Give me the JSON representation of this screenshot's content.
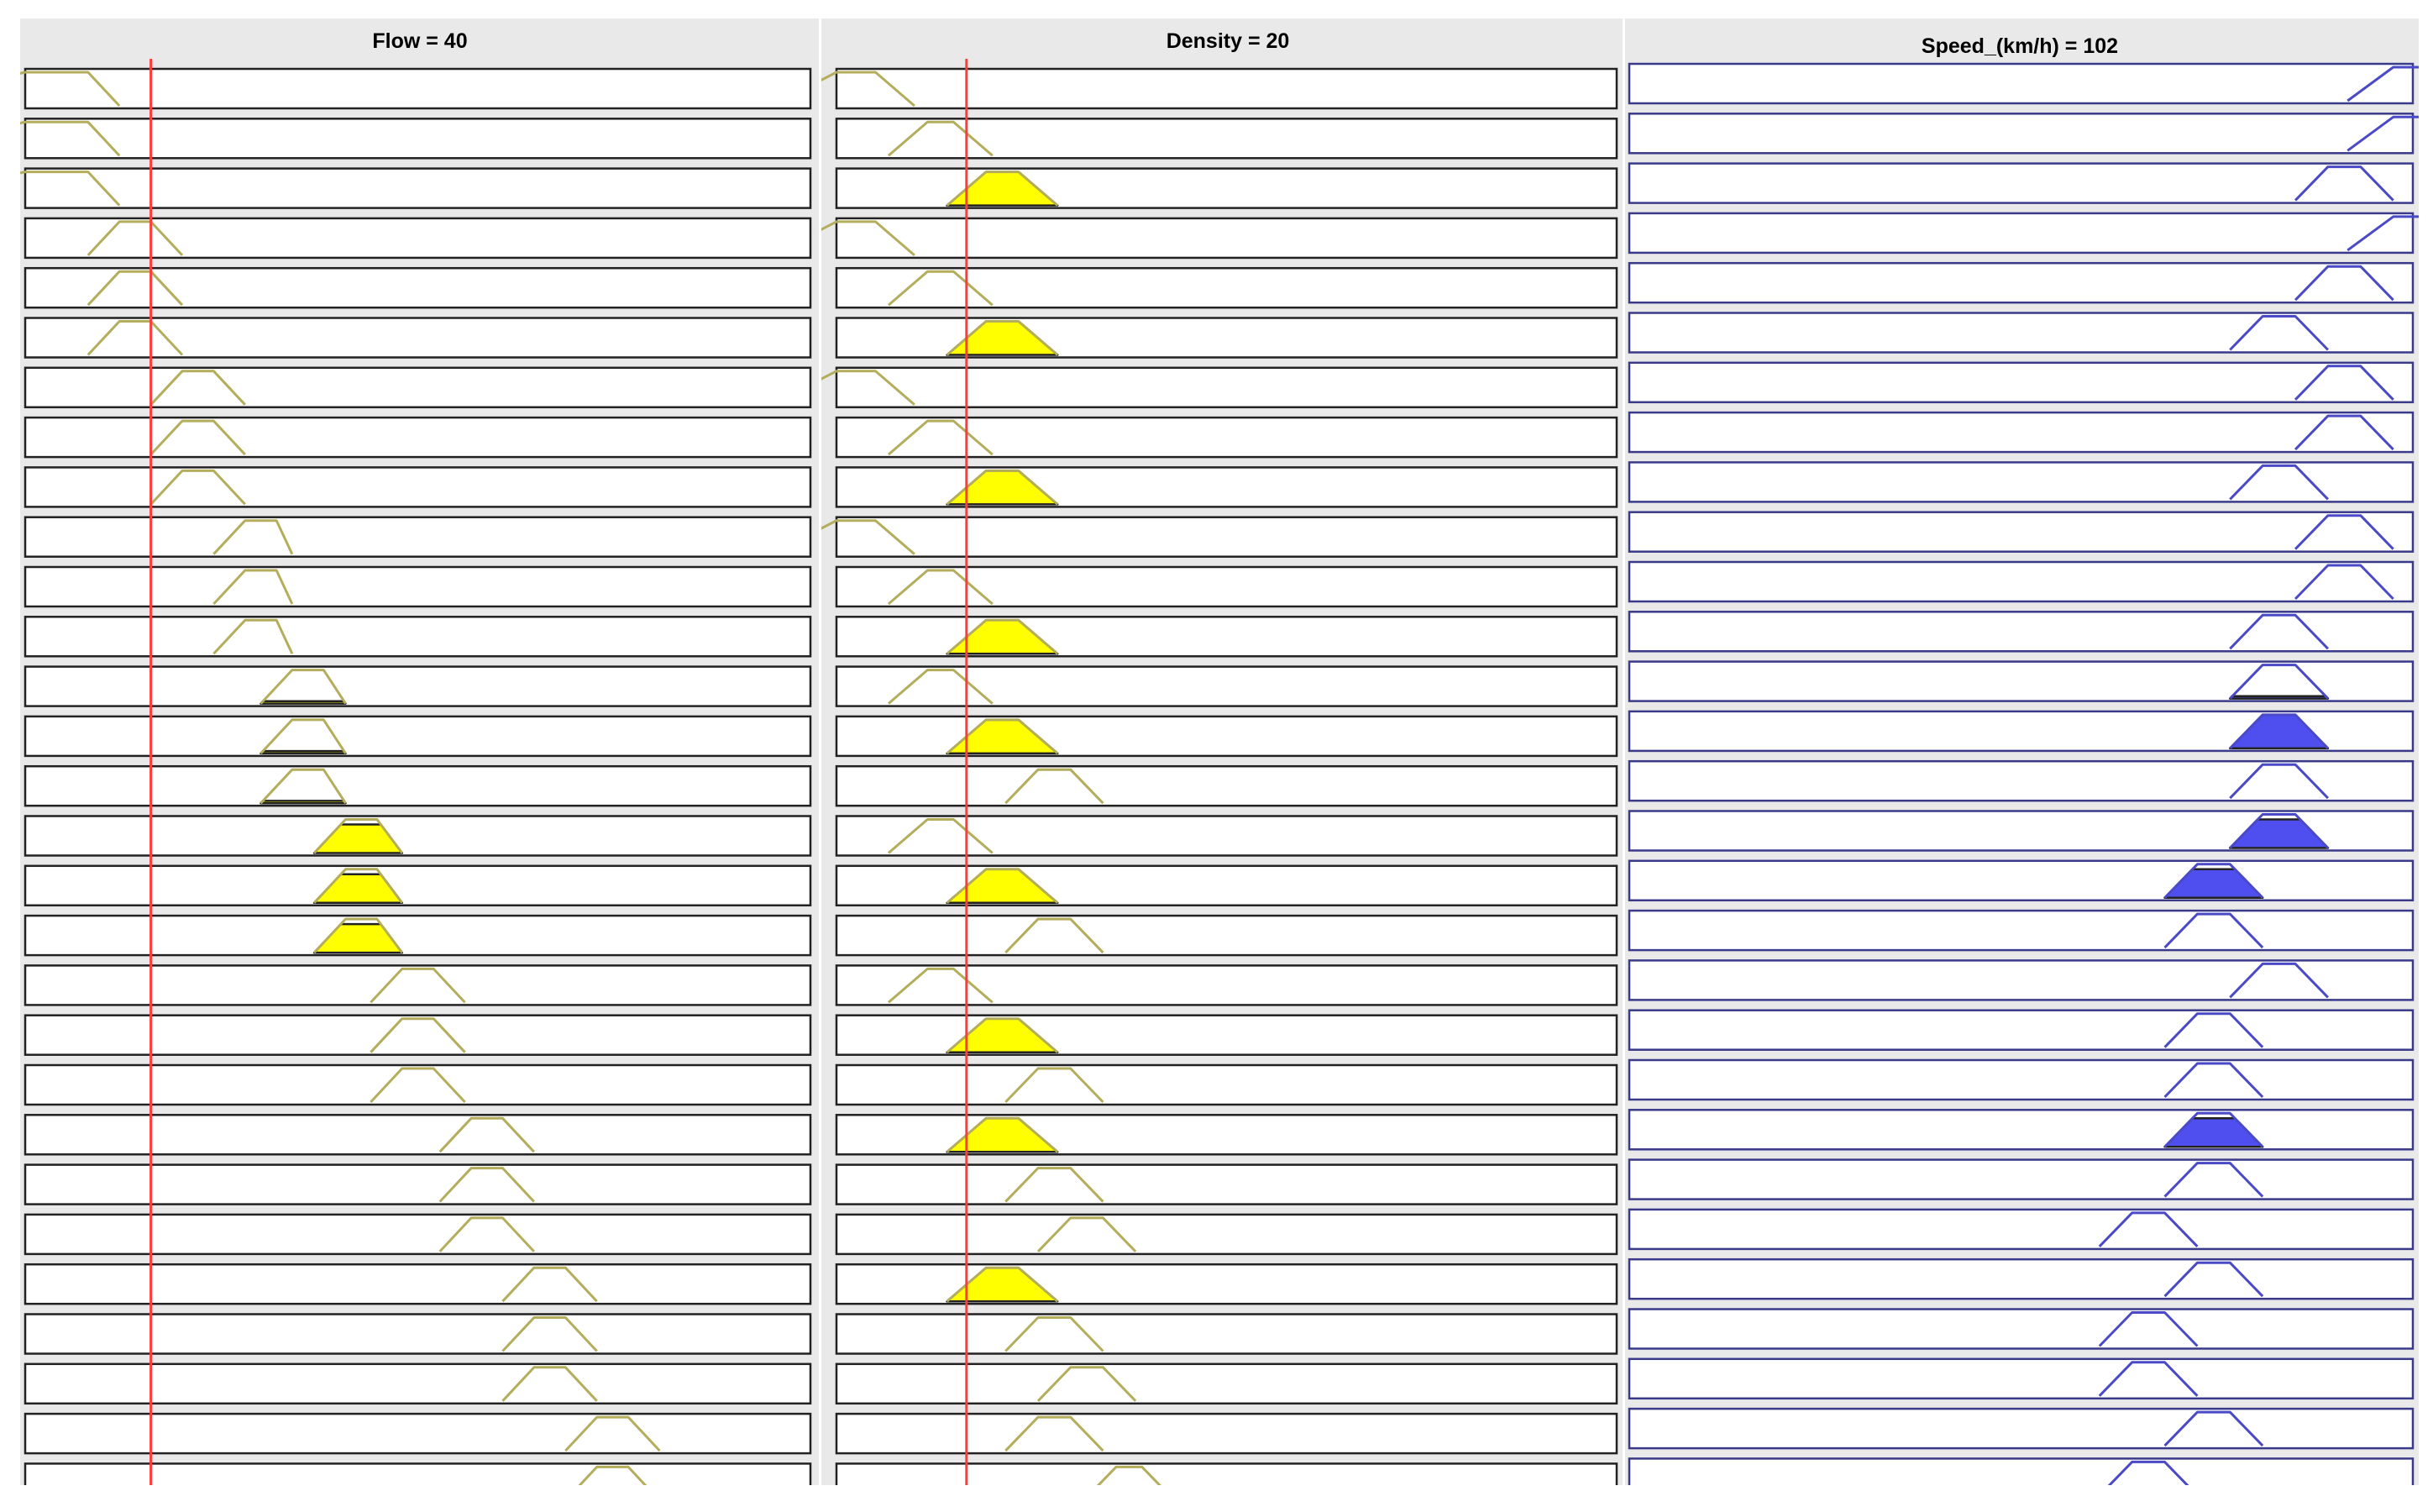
{
  "chart_data": {
    "type": "fuzzy-rule-viewer",
    "colors": {
      "background": "#e9e9e9",
      "input_mf_stroke": "#b4ad5c",
      "input_fill": "#ffff00",
      "output_mf_stroke": "#4a4ac8",
      "output_fill": "#4f4ff0",
      "indicator": "#ff3b3b"
    },
    "inputs": [
      {
        "title": "Flow = 40",
        "value": 40,
        "range": [
          0,
          250
        ],
        "mfs": [
          [
            -50,
            0,
            20,
            30
          ],
          [
            20,
            30,
            40,
            50
          ],
          [
            40,
            50,
            60,
            70
          ],
          [
            60,
            70,
            80,
            85
          ],
          [
            75,
            85,
            95,
            102
          ],
          [
            92,
            102,
            112,
            120
          ],
          [
            110,
            120,
            130,
            140
          ],
          [
            132,
            142,
            152,
            162
          ],
          [
            152,
            162,
            172,
            182
          ],
          [
            172,
            182,
            192,
            202
          ]
        ],
        "rules_mf": [
          0,
          0,
          0,
          1,
          1,
          1,
          2,
          2,
          2,
          3,
          3,
          3,
          4,
          4,
          4,
          5,
          5,
          5,
          6,
          6,
          6,
          7,
          7,
          7,
          8,
          8,
          8,
          9,
          9
        ],
        "rules_degree": [
          0,
          0,
          0,
          0,
          0,
          0,
          0,
          0,
          0,
          0,
          0,
          0,
          0.07,
          0.07,
          0.07,
          0.85,
          0.85,
          0.85,
          0,
          0,
          0,
          0,
          0,
          0,
          0,
          0,
          0,
          0,
          0
        ]
      },
      {
        "title": "Density = 20",
        "value": 20,
        "range": [
          0,
          120
        ],
        "mfs": [
          [
            -10,
            0,
            6,
            12
          ],
          [
            8,
            14,
            18,
            24
          ],
          [
            17,
            23,
            28,
            34
          ],
          [
            26,
            31,
            36,
            41
          ],
          [
            31,
            36,
            41,
            46
          ],
          [
            38,
            43,
            47,
            52
          ],
          [
            31,
            36,
            41,
            46
          ]
        ],
        "rules_mf": [
          0,
          1,
          2,
          0,
          1,
          2,
          0,
          1,
          2,
          0,
          1,
          2,
          1,
          2,
          3,
          1,
          2,
          3,
          1,
          2,
          3,
          2,
          3,
          4,
          2,
          3,
          4,
          3,
          5
        ],
        "rules_degree": [
          0,
          0,
          1,
          0,
          0,
          1,
          0,
          0,
          1,
          0,
          0,
          1,
          0,
          1,
          0,
          0,
          1,
          0,
          0,
          1,
          0,
          1,
          0,
          0,
          1,
          0,
          0,
          0,
          0
        ]
      }
    ],
    "output": {
      "title": "Speed_(km/h) = 102",
      "value": 102,
      "range": [
        0,
        120
      ],
      "mfs": [
        [
          110,
          117,
          122,
          127
        ],
        [
          102,
          107,
          112,
          117
        ],
        [
          92,
          97,
          102,
          107
        ],
        [
          82,
          87,
          92,
          97
        ],
        [
          72,
          77,
          82,
          87
        ]
      ],
      "rules_mf": [
        0,
        0,
        1,
        0,
        1,
        2,
        1,
        1,
        2,
        1,
        1,
        2,
        2,
        2,
        2,
        2,
        3,
        3,
        2,
        3,
        3,
        3,
        3,
        4,
        3,
        4,
        4,
        3,
        4
      ],
      "rules_fire": [
        0,
        0,
        0,
        0,
        0,
        0,
        0,
        0,
        0,
        0,
        0,
        0,
        0.07,
        1,
        0,
        0.85,
        0.85,
        0,
        0,
        0,
        0,
        0.85,
        0,
        0,
        0,
        0,
        0,
        0,
        0
      ]
    }
  }
}
